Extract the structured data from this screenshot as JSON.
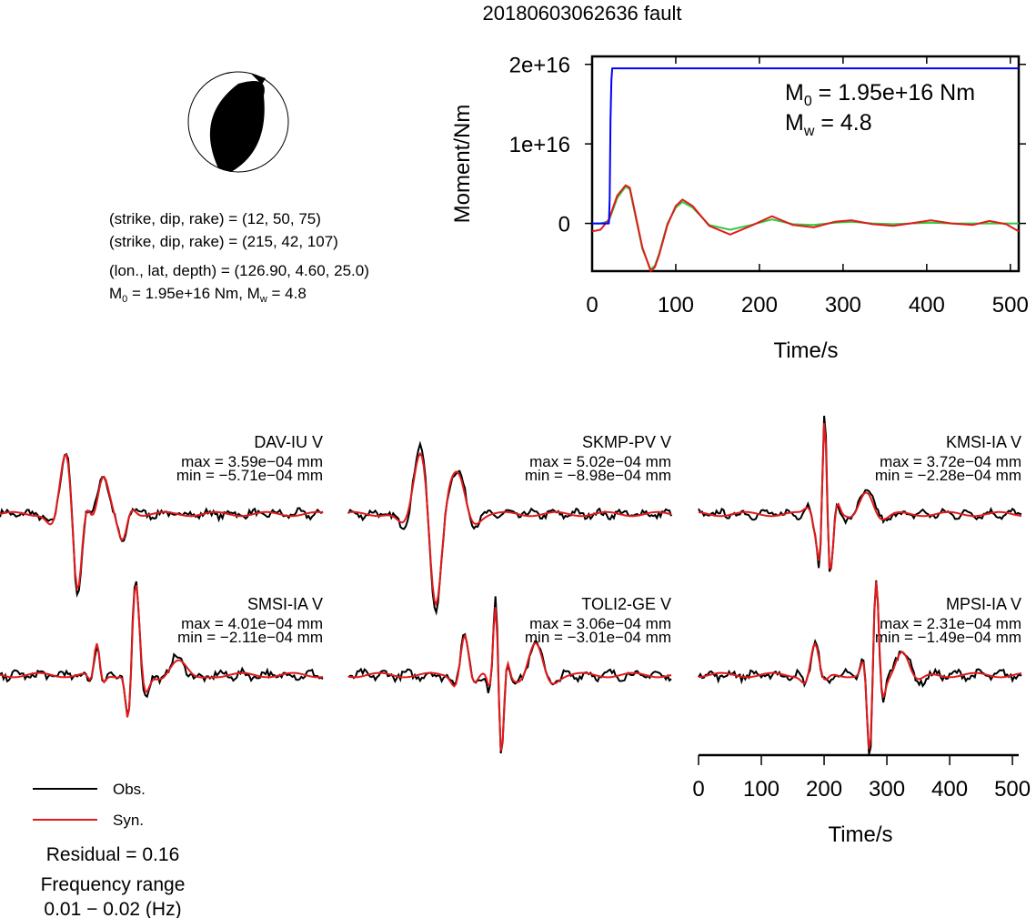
{
  "title": "20180603062636 fault",
  "focal_mechanism": {
    "icon": "beachball-icon",
    "plane1": "(strike, dip, rake) = (12, 50, 75)",
    "plane2": "(strike, dip, rake) = (215, 42, 107)",
    "location": "(lon., lat, depth) = (126.90, 4.60, 25.0)",
    "moment_prefix": "M",
    "moment_sub": "0",
    "moment_rest": " = 1.95e+16 Nm, M",
    "moment_sub_w": "w",
    "moment_end": " = 4.8"
  },
  "moment_panel": {
    "ylabel": "Moment/Nm",
    "xlabel": "Time/s",
    "m0_prefix": "M",
    "m0_sub": "0",
    "m0_value": " = 1.95e+16 Nm",
    "mw_prefix": "M",
    "mw_sub": "w",
    "mw_value": " = 4.8"
  },
  "waveforms": [
    {
      "station": "DAV-IU V",
      "max": "max = 3.59e−04 mm",
      "min": "min = −5.71e−04 mm"
    },
    {
      "station": "SKMP-PV V",
      "max": "max = 5.02e−04 mm",
      "min": "min = −8.98e−04 mm"
    },
    {
      "station": "KMSI-IA V",
      "max": "max = 3.72e−04 mm",
      "min": "min = −2.28e−04 mm"
    },
    {
      "station": "SMSI-IA V",
      "max": "max = 4.01e−04 mm",
      "min": "min = −2.11e−04 mm"
    },
    {
      "station": "TOLI2-GE V",
      "max": "max = 3.06e−04 mm",
      "min": "min = −3.01e−04 mm"
    },
    {
      "station": "MPSI-IA V",
      "max": "max = 2.31e−04 mm",
      "min": "min = −1.49e−04 mm"
    }
  ],
  "time_axis": {
    "xlabel": "Time/s",
    "ticks": [
      "0",
      "100",
      "200",
      "300",
      "400",
      "500"
    ]
  },
  "legend": {
    "obs": "Obs.",
    "syn": "Syn.",
    "obs_color": "#000000",
    "syn_color": "#e31a1c"
  },
  "residual": "Residual = 0.16",
  "frequency_title": "Frequency range",
  "frequency_value": "0.01 − 0.02 (Hz)",
  "chart_data": {
    "type": "line",
    "title": "20180603062636 fault",
    "xlabel": "Time/s",
    "ylabel": "Moment/Nm",
    "xlim": [
      0,
      510
    ],
    "ylim": [
      -6000000000000000.0,
      2.1e+16
    ],
    "x_ticks": [
      "0",
      "100",
      "200",
      "300",
      "400",
      "500"
    ],
    "y_ticks": [
      "0",
      "1e+16",
      "2e+16"
    ],
    "colors": {
      "cumulative": "#0000ff",
      "observed_stf": "#e31a1c",
      "fit_stf": "#2ecc40"
    },
    "series": [
      {
        "x": [
          0,
          20,
          21,
          22,
          23,
          24,
          510
        ],
        "y": [
          0,
          0,
          3000000000000000.0,
          1.3e+16,
          1.8e+16,
          1.95e+16,
          1.95e+16
        ]
      },
      {
        "x": [
          0,
          10,
          20,
          30,
          40,
          45,
          50,
          60,
          70,
          75,
          80,
          90,
          100,
          108,
          120,
          140,
          165,
          190,
          215,
          240,
          265,
          290,
          310,
          335,
          360,
          380,
          405,
          430,
          455,
          475,
          495,
          510
        ],
        "y": [
          -1000000000000000.0,
          -800000000000000.0,
          500000000000000.0,
          3500000000000000.0,
          4800000000000000.0,
          4500000000000000.0,
          2000000000000000.0,
          -3000000000000000.0,
          -6000000000000000.0,
          -5500000000000000.0,
          -4000000000000000.0,
          -200000000000000.0,
          2200000000000000.0,
          3000000000000000.0,
          2200000000000000.0,
          -300000000000000.0,
          -1400000000000000.0,
          -300000000000000.0,
          900000000000000.0,
          -200000000000000.0,
          -500000000000000.0,
          200000000000000.0,
          400000000000000.0,
          -100000000000000.0,
          -300000000000000.0,
          0,
          400000000000000.0,
          0,
          -200000000000000.0,
          300000000000000.0,
          -100000000000000.0,
          -1000000000000000.0
        ]
      },
      {
        "x": [
          0,
          10,
          20,
          30,
          40,
          45,
          50,
          60,
          70,
          75,
          80,
          90,
          100,
          108,
          120,
          140,
          165,
          190,
          215,
          240,
          265,
          290,
          310,
          335,
          360,
          380,
          405,
          430,
          455,
          475,
          495,
          510
        ],
        "y": [
          0,
          0,
          300000000000000.0,
          3200000000000000.0,
          4600000000000000.0,
          4300000000000000.0,
          1800000000000000.0,
          -3200000000000000.0,
          -5800000000000000.0,
          -5300000000000000.0,
          -3800000000000000.0,
          0,
          2000000000000000.0,
          2700000000000000.0,
          2000000000000000.0,
          -200000000000000.0,
          -800000000000000.0,
          -200000000000000.0,
          500000000000000.0,
          -100000000000000.0,
          -200000000000000.0,
          100000000000000.0,
          200000000000000.0,
          0,
          -100000000000000.0,
          0,
          100000000000000.0,
          0,
          0,
          0,
          0,
          0
        ]
      }
    ]
  }
}
